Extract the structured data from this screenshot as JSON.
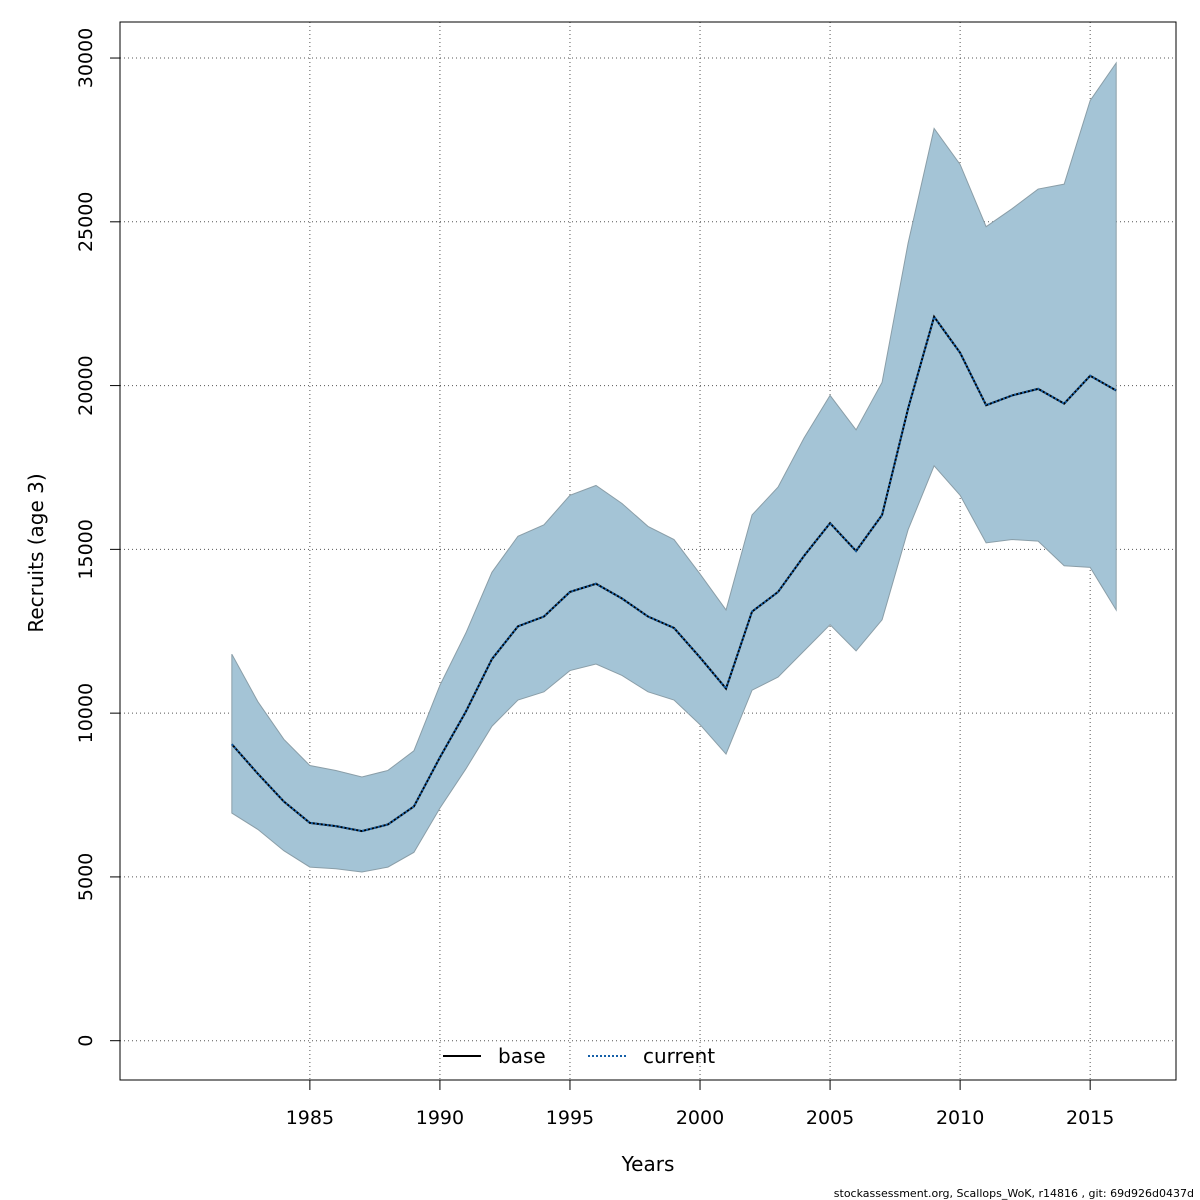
{
  "chart_data": {
    "type": "area",
    "xlabel": "Years",
    "ylabel": "Recruits (age 3)",
    "xlim": [
      1977.7,
      2018.3
    ],
    "ylim": [
      -1200,
      31100
    ],
    "xticks": [
      1985,
      1990,
      1995,
      2000,
      2005,
      2010,
      2015
    ],
    "yticks": [
      0,
      5000,
      10000,
      15000,
      20000,
      25000,
      30000
    ],
    "grid": true,
    "legend_position": "bottom-center",
    "legend": [
      {
        "label": "base",
        "style": "solid"
      },
      {
        "label": "current",
        "style": "dotted"
      }
    ],
    "x": [
      1982,
      1983,
      1984,
      1985,
      1986,
      1987,
      1988,
      1989,
      1990,
      1991,
      1992,
      1993,
      1994,
      1995,
      1996,
      1997,
      1998,
      1999,
      2000,
      2001,
      2002,
      2003,
      2004,
      2005,
      2006,
      2007,
      2008,
      2009,
      2010,
      2011,
      2012,
      2013,
      2014,
      2015,
      2016
    ],
    "series": [
      {
        "name": "base",
        "style": "solid",
        "values": [
          9050,
          8150,
          7300,
          6650,
          6550,
          6400,
          6600,
          7150,
          8650,
          10050,
          11650,
          12650,
          12950,
          13700,
          13950,
          13500,
          12950,
          12600,
          11700,
          10750,
          13100,
          13700,
          14800,
          15800,
          14950,
          16050,
          19300,
          22100,
          21000,
          19400,
          19700,
          19900,
          19450,
          20300,
          19850
        ]
      },
      {
        "name": "current",
        "style": "dotted",
        "values": [
          9050,
          8150,
          7300,
          6650,
          6550,
          6400,
          6600,
          7150,
          8650,
          10050,
          11650,
          12650,
          12950,
          13700,
          13950,
          13500,
          12950,
          12600,
          11700,
          10750,
          13100,
          13700,
          14800,
          15800,
          14950,
          16050,
          19300,
          22100,
          21000,
          19400,
          19700,
          19900,
          19450,
          20300,
          19850
        ]
      }
    ],
    "band": {
      "upper": [
        11800,
        10350,
        9200,
        8400,
        8250,
        8050,
        8250,
        8850,
        10850,
        12450,
        14300,
        15400,
        15750,
        16650,
        16950,
        16400,
        15700,
        15300,
        14250,
        13150,
        16050,
        16900,
        18400,
        19700,
        18650,
        20100,
        24350,
        27850,
        26750,
        24850,
        25400,
        26000,
        26150,
        28700,
        29850
      ],
      "lower": [
        6950,
        6450,
        5800,
        5300,
        5250,
        5150,
        5300,
        5750,
        7100,
        8300,
        9600,
        10400,
        10650,
        11300,
        11500,
        11150,
        10650,
        10400,
        9650,
        8750,
        10700,
        11100,
        11900,
        12700,
        11900,
        12850,
        15600,
        17550,
        16650,
        15200,
        15300,
        15250,
        14500,
        14450,
        13150
      ]
    },
    "colors": {
      "band_fill": "#a4c4d6",
      "band_edge": "#8a9ea8",
      "base_line": "#000000",
      "current_line": "#1560a8",
      "grid": "#555555"
    }
  },
  "footer": {
    "text": "stockassessment.org, Scallops_WoK, r14816 , git: 69d926d0437d"
  }
}
